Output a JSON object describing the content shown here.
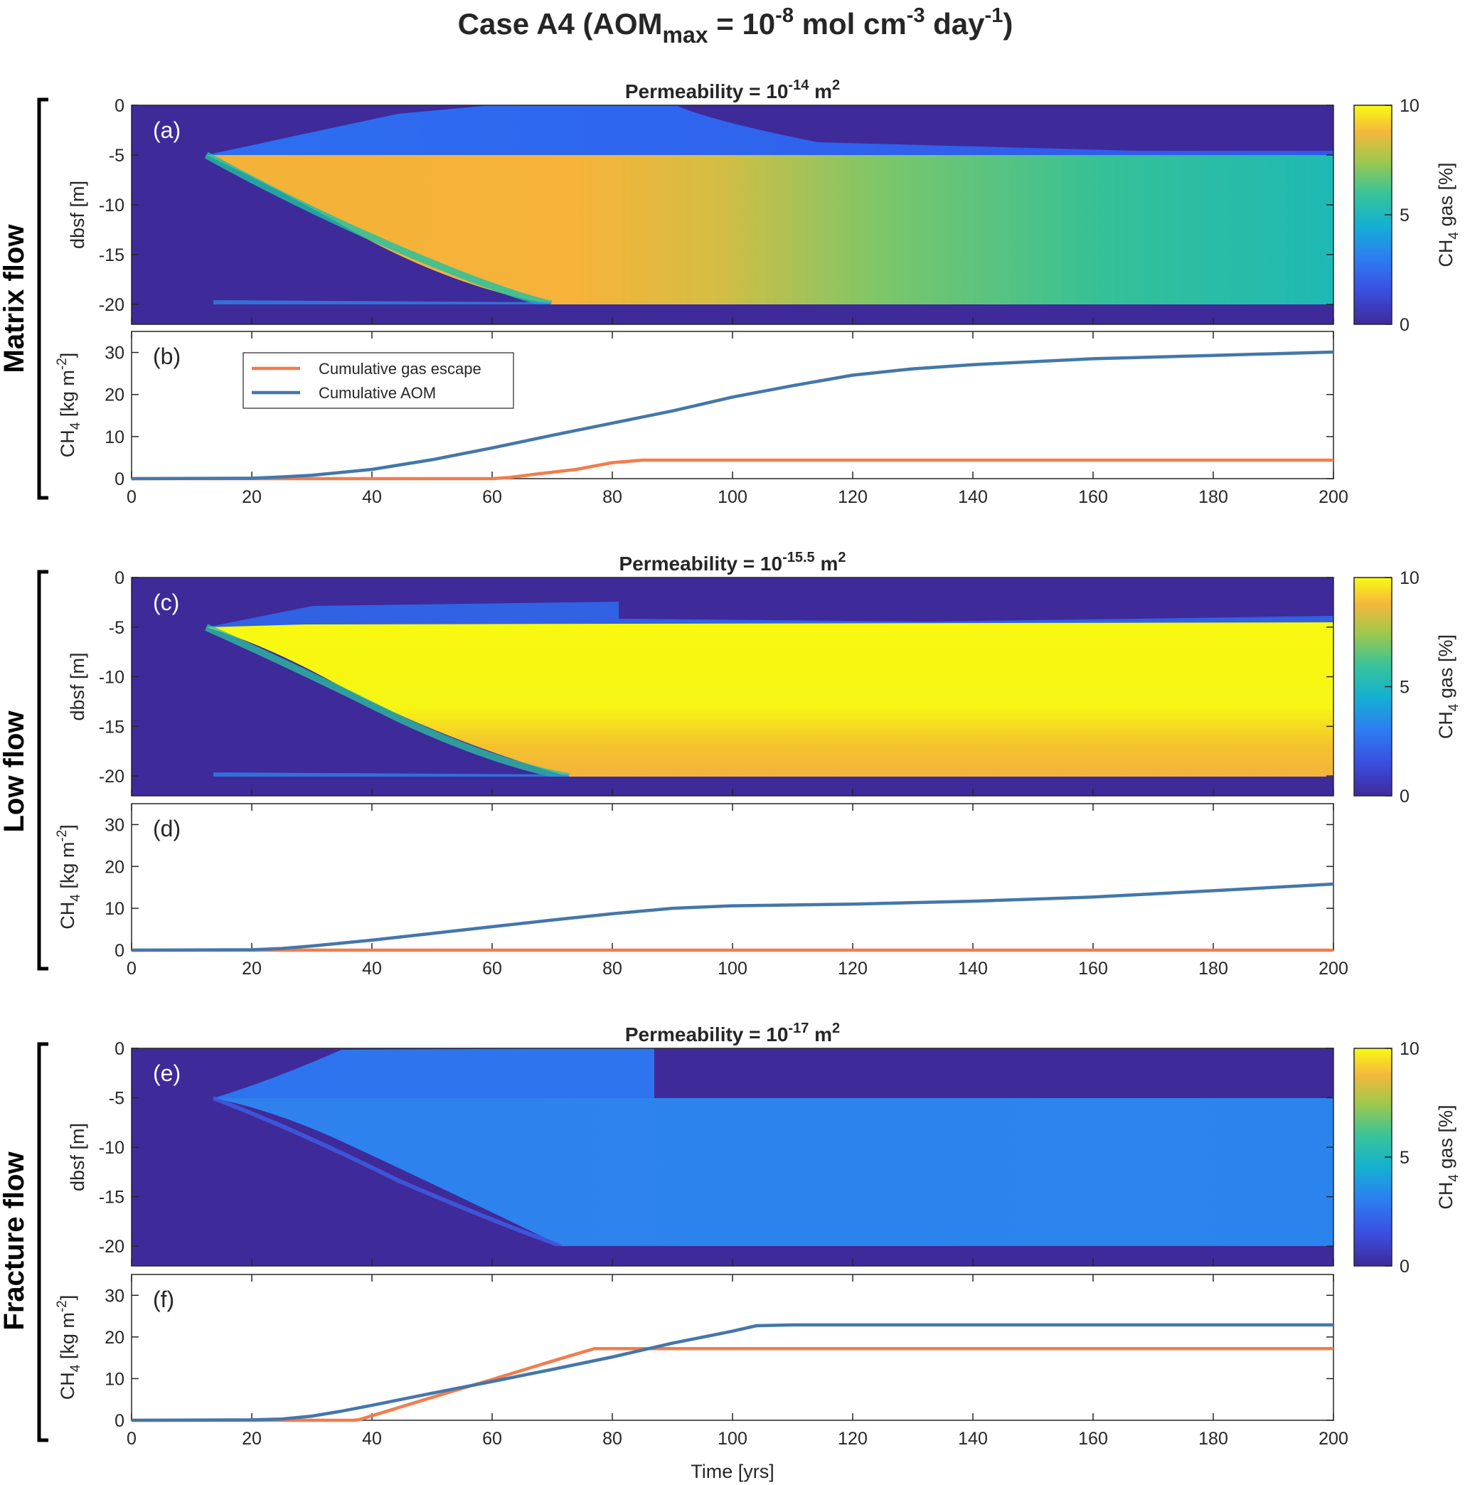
{
  "figure": {
    "suptitle_main": "Case A4 (AOM",
    "suptitle_sub": "max",
    "suptitle_mid": " = 10",
    "suptitle_sup1": "-8",
    "suptitle_mid2": " mol cm",
    "suptitle_sup2": "-3",
    "suptitle_mid3": " day",
    "suptitle_sup3": "-1",
    "suptitle_end": ")",
    "xlabel": "Time [yrs]",
    "colors": {
      "escape": "#f47c4c",
      "aom": "#4477aa",
      "bg": "#3e2a99"
    }
  },
  "row_labels": [
    "Matrix flow",
    "Low flow",
    "Fracture flow"
  ],
  "colorbar": {
    "label_ch": "CH",
    "label_sub": "4",
    "label_rest": " gas [%]",
    "ticks": [
      "0",
      "5",
      "10"
    ]
  },
  "heat_axis": {
    "ylabel": "dbsf [m]",
    "yticks": [
      "0",
      "-5",
      "-10",
      "-15",
      "-20"
    ]
  },
  "line_axis": {
    "ylabel_a": "CH",
    "ylabel_sub": "4",
    "ylabel_b": " [kg m",
    "ylabel_sup": "-2",
    "ylabel_c": "]",
    "yticks": [
      "0",
      "10",
      "20",
      "30"
    ]
  },
  "xticks": [
    "0",
    "20",
    "40",
    "60",
    "80",
    "100",
    "120",
    "140",
    "160",
    "180",
    "200"
  ],
  "legend": {
    "escape": "Cumulative gas escape",
    "aom": "Cumulative AOM"
  },
  "panels": [
    {
      "heat_label": "(a)",
      "line_label": "(b)",
      "perm_prefix": "Permeability = 10",
      "perm_exp": "-14",
      "perm_suffix": " m",
      "perm_sq": "2"
    },
    {
      "heat_label": "(c)",
      "line_label": "(d)",
      "perm_prefix": "Permeability = 10",
      "perm_exp": "-15.5",
      "perm_suffix": " m",
      "perm_sq": "2"
    },
    {
      "heat_label": "(e)",
      "line_label": "(f)",
      "perm_prefix": "Permeability = 10",
      "perm_exp": "-17",
      "perm_suffix": " m",
      "perm_sq": "2"
    }
  ],
  "chart_data": [
    {
      "type": "heatmap",
      "panel": "(a)",
      "title": "Permeability = 10^-14 m^2",
      "xlim": [
        0,
        200
      ],
      "ylim": [
        -22,
        0
      ],
      "ylabel": "dbsf [m]",
      "colorbar_range": [
        0,
        10
      ],
      "colorbar_label": "CH4 gas [%]",
      "colormap": "parula",
      "description_values": {
        "gas_zone_depth": [
          -5,
          -20
        ],
        "peak_value_pct": 8.5,
        "late_value_pct": 4.5,
        "front_end_time": 70
      }
    },
    {
      "type": "line",
      "panel": "(b)",
      "xlim": [
        0,
        200
      ],
      "ylim": [
        0,
        35
      ],
      "ylabel": "CH4 [kg m-2]",
      "series": [
        {
          "name": "Cumulative gas escape",
          "x": [
            0,
            60,
            63,
            68,
            74,
            80,
            85,
            90,
            200
          ],
          "y": [
            0,
            0,
            0.3,
            1.2,
            2.2,
            3.8,
            4.4,
            4.4,
            4.4
          ]
        },
        {
          "name": "Cumulative AOM",
          "x": [
            0,
            20,
            25,
            30,
            40,
            50,
            60,
            70,
            80,
            90,
            100,
            110,
            120,
            130,
            140,
            160,
            180,
            200
          ],
          "y": [
            0,
            0.1,
            0.4,
            0.8,
            2.2,
            4.5,
            7.3,
            10.3,
            13.2,
            16.1,
            19.4,
            22.1,
            24.6,
            26.1,
            27.1,
            28.5,
            29.3,
            30.1
          ]
        }
      ]
    },
    {
      "type": "heatmap",
      "panel": "(c)",
      "title": "Permeability = 10^-15.5 m^2",
      "xlim": [
        0,
        200
      ],
      "ylim": [
        -22,
        0
      ],
      "ylabel": "dbsf [m]",
      "colorbar_range": [
        0,
        10
      ],
      "colorbar_label": "CH4 gas [%]",
      "colormap": "parula",
      "description_values": {
        "gas_zone_depth": [
          -5,
          -20
        ],
        "peak_value_pct": 10,
        "front_end_time": 73
      }
    },
    {
      "type": "line",
      "panel": "(d)",
      "xlim": [
        0,
        200
      ],
      "ylim": [
        0,
        35
      ],
      "ylabel": "CH4 [kg m-2]",
      "series": [
        {
          "name": "Cumulative gas escape",
          "x": [
            0,
            200
          ],
          "y": [
            0,
            0
          ]
        },
        {
          "name": "Cumulative AOM",
          "x": [
            0,
            20,
            25,
            30,
            40,
            50,
            60,
            70,
            80,
            90,
            100,
            120,
            140,
            160,
            180,
            200
          ],
          "y": [
            0,
            0.1,
            0.4,
            1.0,
            2.4,
            4.0,
            5.6,
            7.2,
            8.7,
            10.0,
            10.6,
            11.0,
            11.7,
            12.7,
            14.2,
            15.8
          ]
        }
      ]
    },
    {
      "type": "heatmap",
      "panel": "(e)",
      "title": "Permeability = 10^-17 m^2",
      "xlim": [
        0,
        200
      ],
      "ylim": [
        -22,
        0
      ],
      "ylabel": "dbsf [m]",
      "colorbar_range": [
        0,
        10
      ],
      "colorbar_label": "CH4 gas [%]",
      "colormap": "parula",
      "description_values": {
        "gas_zone_depth": [
          -5,
          -20
        ],
        "peak_value_pct": 3,
        "front_end_time": 75
      }
    },
    {
      "type": "line",
      "panel": "(f)",
      "xlim": [
        0,
        200
      ],
      "ylim": [
        0,
        35
      ],
      "ylabel": "CH4 [kg m-2]",
      "series": [
        {
          "name": "Cumulative gas escape",
          "x": [
            0,
            37,
            38,
            50,
            60,
            70,
            77,
            200
          ],
          "y": [
            0,
            0,
            0.2,
            5.5,
            9.8,
            14.2,
            17.2,
            17.2
          ]
        },
        {
          "name": "Cumulative AOM",
          "x": [
            0,
            20,
            25,
            30,
            35,
            40,
            50,
            60,
            70,
            80,
            90,
            100,
            104,
            110,
            200
          ],
          "y": [
            0,
            0.1,
            0.3,
            1.0,
            2.2,
            3.6,
            6.5,
            9.3,
            12.2,
            15.2,
            18.5,
            21.4,
            22.7,
            22.9,
            22.9
          ]
        }
      ]
    }
  ]
}
